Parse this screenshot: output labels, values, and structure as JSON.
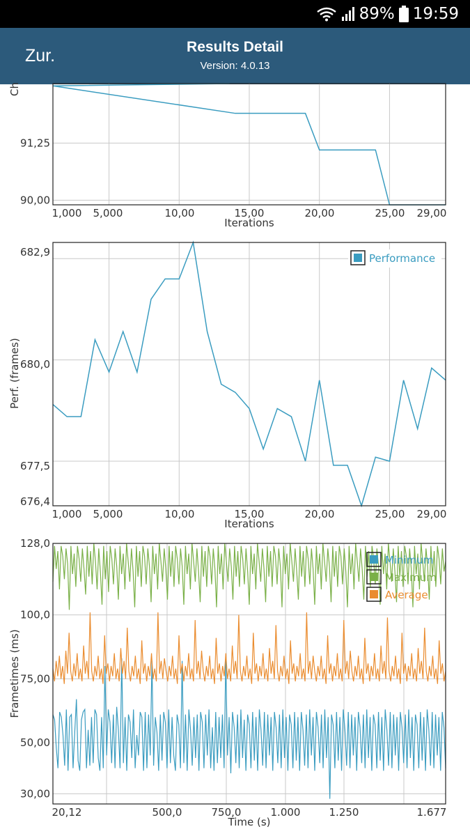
{
  "status_bar": {
    "battery": "89%",
    "time": "19:59"
  },
  "app_bar": {
    "back_label": "Zur.",
    "title": "Results Detail",
    "subtitle": "Version: 4.0.13"
  },
  "colors": {
    "app_bar": "#2c5a7b",
    "min": "#3a9cc0",
    "max": "#7ab048",
    "avg": "#ea8c2f",
    "grid": "#c8c8c8"
  },
  "icons": {
    "wifi": "wifi-icon",
    "signal": "signal-icon",
    "battery": "battery-icon"
  },
  "chart_data": [
    {
      "type": "line",
      "ylabel": "Ch",
      "xlabel": "Iterations",
      "x_ticks": [
        "1,000",
        "5,000",
        "10,00",
        "15,00",
        "20,00",
        "25,00",
        "29,00"
      ],
      "y_ticks": [
        "91,25",
        "90,00"
      ],
      "x": [
        1,
        14,
        19,
        20,
        24,
        25,
        29
      ],
      "values": [
        92.5,
        91.9,
        91.9,
        91.1,
        91.1,
        89.9,
        89.9
      ],
      "xlim": [
        1,
        29
      ],
      "ylim": [
        89.9,
        92.55
      ],
      "grid": true
    },
    {
      "type": "line",
      "ylabel": "Perf. (frames)",
      "xlabel": "Iterations",
      "x_ticks": [
        "1,000",
        "5,000",
        "10,00",
        "15,00",
        "20,00",
        "25,00",
        "29,00"
      ],
      "y_ticks": [
        "682,9",
        "680,0",
        "677,5",
        "676,4"
      ],
      "legend": [
        "Performance"
      ],
      "legend_position": "top-right",
      "x": [
        1,
        2,
        3,
        4,
        5,
        6,
        7,
        8,
        9,
        10,
        11,
        12,
        13,
        14,
        15,
        16,
        17,
        18,
        19,
        20,
        21,
        22,
        23,
        24,
        25,
        26,
        27,
        28,
        29
      ],
      "series": [
        {
          "name": "Performance",
          "values": [
            678.9,
            678.6,
            678.6,
            680.5,
            679.7,
            680.7,
            679.7,
            681.5,
            682.0,
            682.0,
            682.9,
            680.7,
            679.4,
            679.2,
            678.8,
            677.8,
            678.8,
            678.6,
            677.5,
            679.5,
            677.4,
            677.4,
            676.4,
            677.6,
            677.5,
            679.5,
            678.3,
            679.8,
            679.5
          ]
        }
      ],
      "ylim": [
        676.4,
        682.9
      ],
      "grid": true
    },
    {
      "type": "line",
      "ylabel": "Frametimes (ms)",
      "xlabel": "Time (s)",
      "x_ticks": [
        "20,12",
        "500,0",
        "750,0",
        "1.000",
        "1.250",
        "1.677"
      ],
      "y_ticks": [
        "128,0",
        "100,0",
        "75,00",
        "50,00",
        "30,00"
      ],
      "legend": [
        "Minimum",
        "Maximum",
        "Average"
      ],
      "legend_position": "top-right",
      "xlim": [
        20.12,
        1677
      ],
      "ylim": [
        26,
        128
      ],
      "series": [
        {
          "name": "Minimum",
          "values": [
            61,
            59,
            48,
            40,
            62,
            60,
            53,
            41,
            63,
            39,
            60,
            61,
            40,
            54,
            67,
            43,
            39,
            59,
            62,
            63,
            40,
            55,
            41,
            60,
            42,
            63,
            61,
            44,
            39,
            60,
            40,
            80,
            45,
            63,
            58,
            42,
            61,
            40,
            64,
            55,
            40,
            83,
            42,
            60,
            39,
            61,
            58,
            44,
            63,
            40,
            53,
            45,
            62,
            60,
            39,
            62,
            40,
            61,
            45,
            82,
            41,
            60,
            54,
            39,
            61,
            43,
            62,
            58,
            40,
            63,
            42,
            60,
            45,
            39,
            61,
            57,
            40,
            82,
            42,
            61,
            39,
            63,
            55,
            41,
            60,
            44,
            61,
            39,
            62,
            58,
            40,
            61,
            45,
            63,
            40,
            56,
            39,
            62,
            42,
            60,
            44,
            61,
            40,
            83,
            45,
            60,
            38,
            62,
            56,
            42,
            61,
            40,
            63,
            44,
            59,
            39,
            61,
            57,
            40,
            62,
            43,
            60,
            39,
            63,
            55,
            41,
            62,
            40,
            61,
            45,
            60,
            39,
            62,
            56,
            42,
            61,
            40,
            63,
            44,
            60,
            39,
            61,
            57,
            40,
            62,
            43,
            60,
            39,
            62,
            55,
            41,
            61,
            40,
            63,
            45,
            60,
            39,
            62,
            56,
            42,
            61,
            40,
            63,
            44,
            60,
            28,
            61,
            57,
            40,
            62,
            43,
            60,
            39,
            63,
            55,
            41,
            62,
            40,
            61,
            45,
            60,
            39,
            62,
            56,
            42,
            61,
            40,
            63,
            44,
            60,
            39,
            61,
            57,
            40,
            62,
            43,
            60,
            39,
            63,
            55,
            41,
            62,
            40,
            61,
            45,
            60,
            39,
            62,
            56,
            42,
            61,
            40,
            63,
            44,
            60,
            39,
            61,
            57,
            40,
            62,
            43,
            60,
            39,
            63,
            55,
            41,
            62,
            40,
            61,
            45,
            60,
            39,
            62,
            56,
            40
          ]
        },
        {
          "name": "Maximum",
          "values": [
            113,
            127,
            118,
            125,
            110,
            127,
            123,
            114,
            126,
            120,
            102,
            127,
            116,
            124,
            111,
            127,
            122,
            113,
            126,
            118,
            108,
            127,
            115,
            125,
            112,
            128,
            121,
            110,
            126,
            117,
            104,
            127,
            114,
            125,
            109,
            127,
            122,
            112,
            126,
            119,
            106,
            127,
            116,
            124,
            110,
            128,
            121,
            113,
            126,
            117,
            103,
            127,
            115,
            125,
            111,
            127,
            123,
            112,
            126,
            119,
            105,
            127,
            116,
            124,
            110,
            128,
            121,
            113,
            126,
            118,
            106,
            127,
            115,
            125,
            111,
            127,
            122,
            112,
            126,
            119,
            104,
            127,
            116,
            124,
            110,
            128,
            121,
            113,
            126,
            117,
            105,
            127,
            115,
            125,
            111,
            127,
            123,
            112,
            126,
            118,
            103,
            127,
            116,
            124,
            110,
            128,
            121,
            113,
            126,
            119,
            106,
            127,
            115,
            125,
            111,
            127,
            122,
            112,
            126,
            117,
            104,
            127,
            116,
            124,
            110,
            128,
            121,
            113,
            126,
            118,
            105,
            127,
            115,
            125,
            111,
            127,
            123,
            112,
            126,
            119,
            103,
            127,
            116,
            124,
            110,
            128,
            121,
            113,
            126,
            117,
            106,
            127,
            115,
            125,
            111,
            127,
            122,
            112,
            126,
            118,
            104,
            127,
            116,
            124,
            110,
            128,
            121,
            113,
            126,
            119,
            105,
            127,
            115,
            125,
            111,
            127,
            123,
            112,
            126,
            117,
            103,
            127,
            116,
            124,
            110,
            128,
            121,
            113,
            126,
            118,
            106,
            127,
            115,
            125,
            111,
            127,
            122,
            112,
            126,
            119,
            104,
            127,
            116,
            124,
            110,
            128,
            121,
            113,
            126,
            117,
            105,
            127,
            115,
            125,
            111,
            127,
            123,
            112,
            126,
            118,
            103,
            127,
            116,
            124,
            110,
            128,
            121,
            113,
            126,
            119,
            106,
            127,
            115,
            125,
            111,
            127,
            122,
            112,
            126,
            117,
            121
          ]
        },
        {
          "name": "Average",
          "values": [
            79,
            74,
            82,
            76,
            84,
            75,
            80,
            73,
            86,
            77,
            93,
            78,
            74,
            81,
            76,
            85,
            75,
            79,
            74,
            88,
            77,
            82,
            75,
            101,
            78,
            74,
            80,
            76,
            84,
            75,
            79,
            73,
            92,
            77,
            81,
            74,
            80,
            76,
            85,
            75,
            79,
            74,
            87,
            77,
            82,
            75,
            95,
            78,
            74,
            80,
            76,
            84,
            75,
            79,
            73,
            90,
            77,
            81,
            74,
            80,
            76,
            85,
            75,
            79,
            74,
            101,
            77,
            82,
            75,
            83,
            78,
            74,
            80,
            76,
            84,
            75,
            79,
            73,
            92,
            77,
            81,
            74,
            80,
            76,
            85,
            75,
            79,
            74,
            98,
            77,
            82,
            75,
            86,
            78,
            74,
            80,
            76,
            84,
            75,
            79,
            73,
            91,
            77,
            81,
            74,
            80,
            76,
            85,
            75,
            79,
            74,
            88,
            77,
            82,
            75,
            100,
            78,
            74,
            80,
            76,
            84,
            75,
            79,
            73,
            93,
            77,
            81,
            74,
            80,
            76,
            85,
            75,
            79,
            74,
            87,
            77,
            82,
            75,
            96,
            78,
            74,
            80,
            76,
            84,
            75,
            79,
            73,
            90,
            77,
            81,
            74,
            80,
            76,
            85,
            75,
            79,
            74,
            101,
            77,
            82,
            75,
            84,
            78,
            74,
            80,
            76,
            84,
            75,
            79,
            73,
            92,
            77,
            81,
            74,
            80,
            76,
            85,
            75,
            79,
            74,
            98,
            77,
            82,
            75,
            86,
            78,
            74,
            80,
            76,
            84,
            75,
            79,
            73,
            91,
            77,
            81,
            74,
            80,
            76,
            85,
            75,
            79,
            74,
            88,
            77,
            82,
            75,
            99,
            78,
            74,
            80,
            76,
            84,
            75,
            79,
            73,
            93,
            77,
            81,
            74,
            80,
            76,
            85,
            75,
            79,
            74,
            87,
            77,
            82,
            75,
            95,
            78,
            74,
            80,
            76,
            84,
            75,
            79,
            73,
            90,
            77,
            81,
            74,
            78
          ]
        }
      ],
      "grid": true
    }
  ]
}
